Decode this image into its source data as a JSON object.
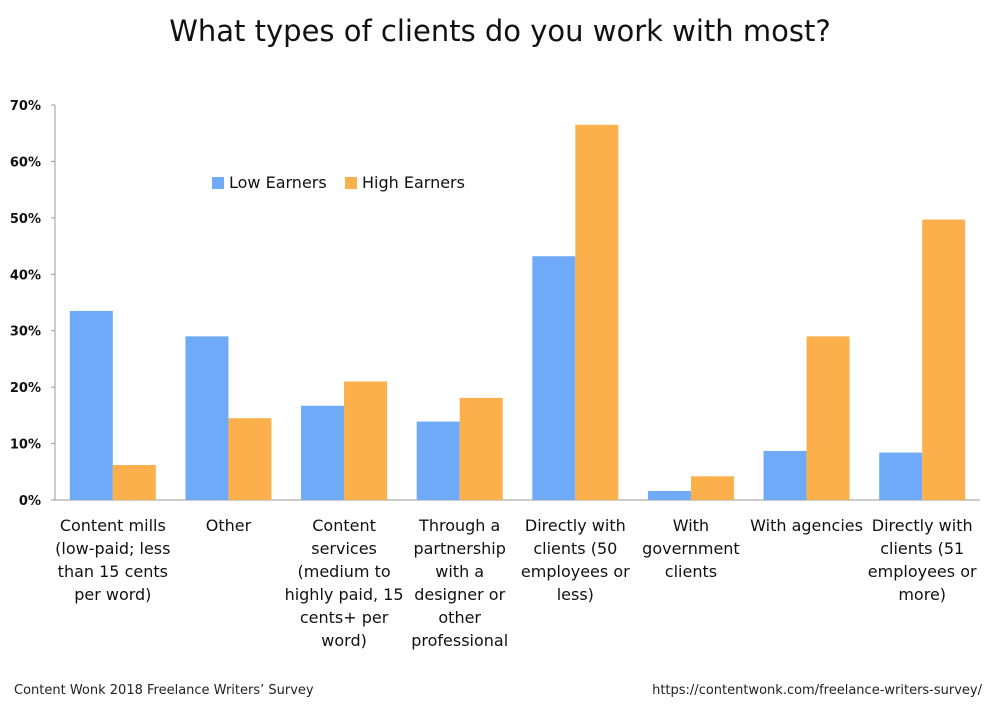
{
  "chart_data": {
    "type": "bar",
    "title": "What types of clients do you work with most?",
    "categories": [
      "Content mills (low-paid; less than 15 cents per word)",
      "Other",
      "Content services (medium to highly paid, 15 cents+ per word)",
      "Through a partnership with a designer or other professional",
      "Directly with clients (50 employees or less)",
      "With government clients",
      "With agencies",
      "Directly with clients (51 employees or more)"
    ],
    "category_lines": [
      [
        "Content mills",
        "(low-paid; less",
        "than 15 cents",
        "per word)"
      ],
      [
        "Other"
      ],
      [
        "Content",
        "services",
        "(medium to",
        "highly paid, 15",
        "cents+ per",
        "word)"
      ],
      [
        "Through a",
        "partnership",
        "with a",
        "designer or",
        "other",
        "professional"
      ],
      [
        "Directly with",
        "clients (50",
        "employees or",
        "less)"
      ],
      [
        "With",
        "government",
        "clients"
      ],
      [
        "With agencies"
      ],
      [
        "Directly with",
        "clients (51",
        "employees or",
        "more)"
      ]
    ],
    "series": [
      {
        "name": "Low Earners",
        "color": "#6eaaf7",
        "values": [
          33.5,
          29.0,
          16.7,
          13.9,
          43.2,
          1.6,
          8.7,
          8.4
        ]
      },
      {
        "name": "High Earners",
        "color": "#fbb04c",
        "values": [
          6.2,
          14.5,
          21.0,
          18.1,
          66.5,
          4.2,
          29.0,
          49.7
        ]
      }
    ],
    "ylim": [
      0,
      70
    ],
    "yticks": [
      0,
      10,
      20,
      30,
      40,
      50,
      60,
      70
    ],
    "ytick_labels": [
      "0%",
      "10%",
      "20%",
      "30%",
      "40%",
      "50%",
      "60%",
      "70%"
    ],
    "xlabel": "",
    "ylabel": "",
    "grid": false,
    "legend_position": "upper-left inside plot"
  },
  "footer": {
    "source": "Content Wonk 2018 Freelance Writers’ Survey",
    "url": "https://contentwonk.com/freelance-writers-survey/"
  }
}
